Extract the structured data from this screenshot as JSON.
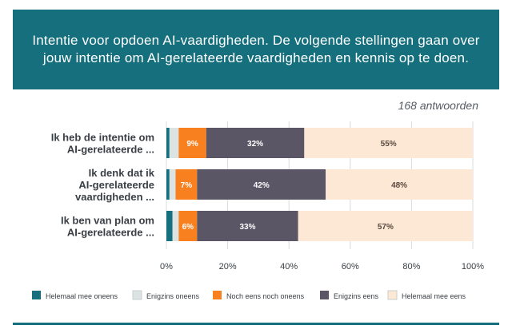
{
  "header": {
    "title": "Intentie voor opdoen AI-vaardigheden. De volgende stellingen gaan over jouw intentie om AI-gerelateerde vaardigheden en kennis op te doen."
  },
  "responses_label": "168 antwoorden",
  "colors": {
    "header_bg": "#156f7d",
    "series": [
      "#156f7d",
      "#dbe4e3",
      "#f8801f",
      "#5b5666",
      "#fde7d5"
    ]
  },
  "chart_data": {
    "type": "bar",
    "orientation": "horizontal",
    "stacked": true,
    "categories": [
      [
        "Ik heb de intentie om",
        "AI-gerelateerde ..."
      ],
      [
        "Ik denk dat ik",
        "AI-gerelateerde",
        "vaardigheden ..."
      ],
      [
        "Ik ben van plan om",
        "AI-gerelateerde ..."
      ]
    ],
    "series": [
      {
        "name": "Helemaal mee oneens",
        "values": [
          1,
          1,
          2
        ]
      },
      {
        "name": "Enigzins oneens",
        "values": [
          3,
          2,
          2
        ]
      },
      {
        "name": "Noch eens noch oneens",
        "values": [
          9,
          7,
          6
        ]
      },
      {
        "name": "Enigzins eens",
        "values": [
          32,
          42,
          33
        ]
      },
      {
        "name": "Helemaal mee eens",
        "values": [
          55,
          48,
          57
        ]
      }
    ],
    "data_labels": [
      [
        "",
        "",
        "9%",
        "32%",
        "55%"
      ],
      [
        "",
        "",
        "7%",
        "42%",
        "48%"
      ],
      [
        "",
        "",
        "6%",
        "33%",
        "57%"
      ]
    ],
    "x_ticks": [
      "0%",
      "20%",
      "40%",
      "60%",
      "80%",
      "100%"
    ],
    "xlim": [
      0,
      100
    ],
    "grid": true,
    "legend_position": "bottom"
  }
}
